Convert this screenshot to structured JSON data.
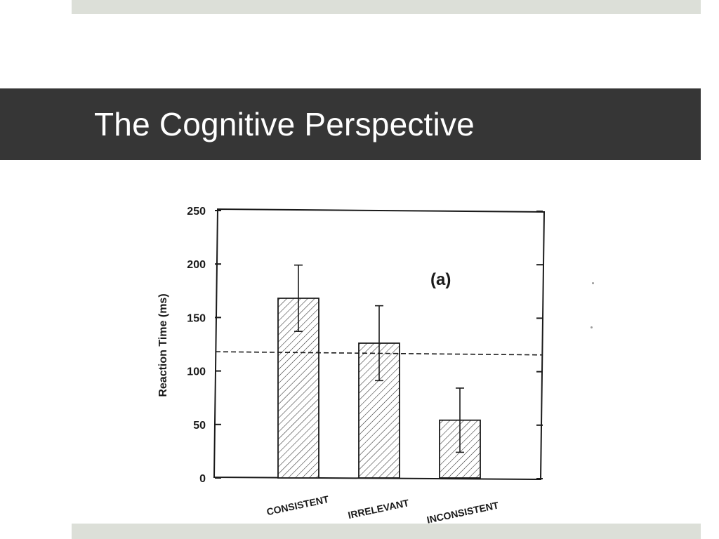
{
  "slide": {
    "title": "The Cognitive Perspective"
  },
  "colors": {
    "title_band": "#363636",
    "title_text": "#ffffff",
    "accent_bars": "#dcdfd8",
    "ink": "#1a1a1a"
  },
  "chart_data": {
    "type": "bar",
    "title": "",
    "panel_label": "(a)",
    "categories": [
      "CONSISTENT",
      "IRRELEVANT",
      "INCONSISTENT"
    ],
    "values": [
      168,
      126,
      54
    ],
    "error_bars": [
      {
        "low": 137,
        "high": 199
      },
      {
        "low": 91,
        "high": 161
      },
      {
        "low": 24,
        "high": 84
      }
    ],
    "reference_line": {
      "start": 118,
      "end": 115,
      "style": "dashed"
    },
    "xlabel": "",
    "ylabel": "Reaction Time (ms)",
    "ylim": [
      0,
      250
    ],
    "yticks": [
      0,
      50,
      100,
      150,
      200,
      250
    ],
    "bar_fill": "diagonal hatch",
    "grid": false
  }
}
